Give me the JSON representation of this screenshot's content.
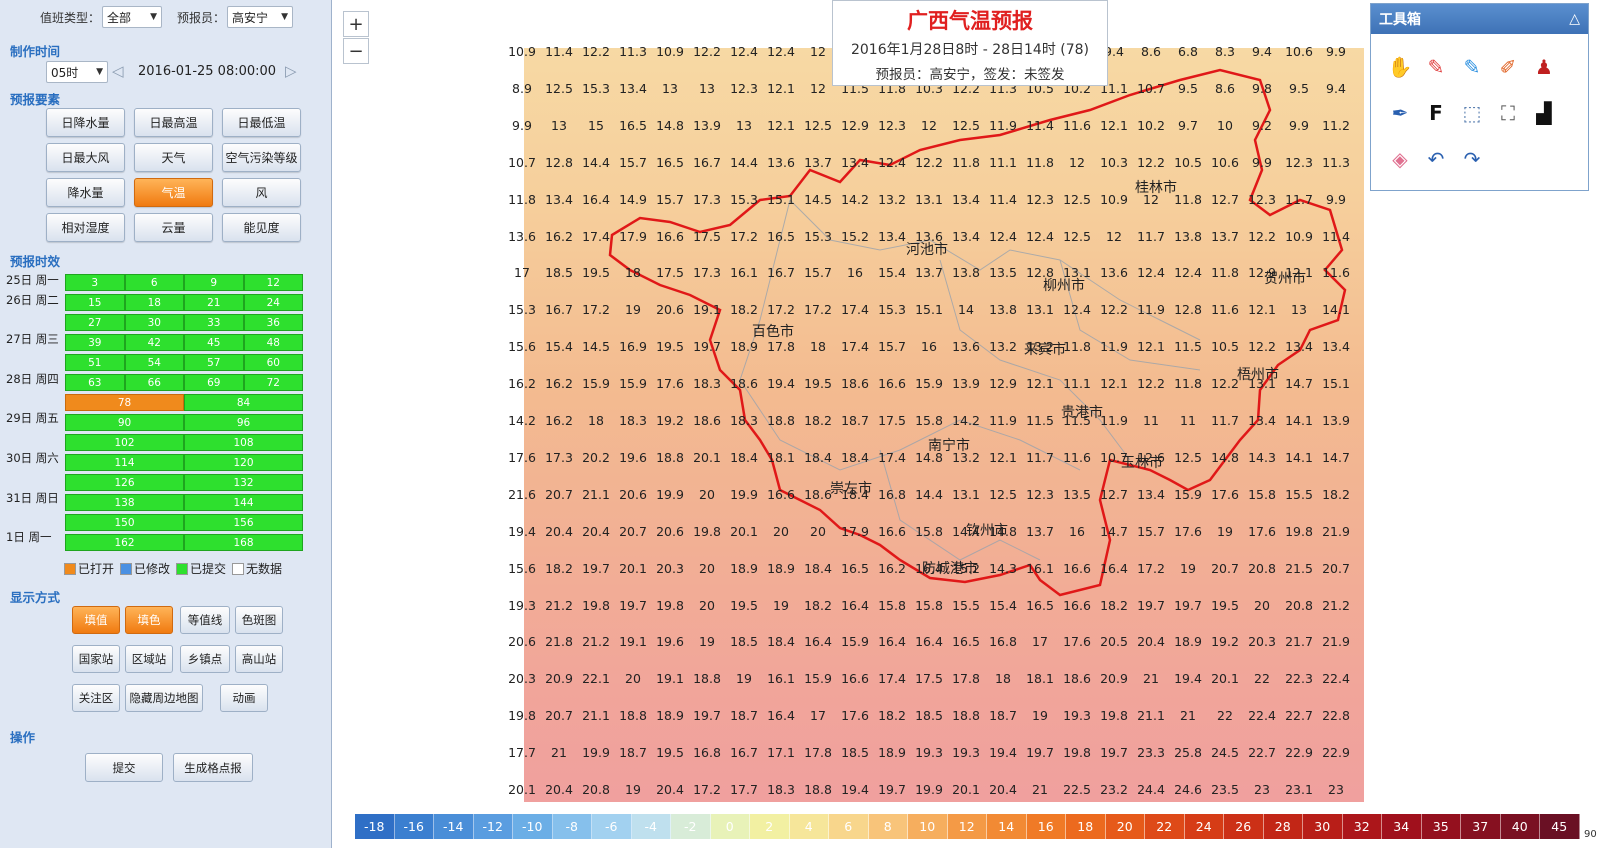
{
  "left": {
    "duty_label": "值班类型：",
    "duty_value": "全部",
    "forecaster_label": "预报员：",
    "forecaster_value": "高安宁",
    "make_time_title": "制作时间",
    "hour_value": "05时",
    "datetime_value": "2016-01-25 08:00:00",
    "elements_title": "预报要素",
    "elements": [
      "日降水量",
      "日最高温",
      "日最低温",
      "日最大风",
      "天气",
      "空气污染等级",
      "降水量",
      "气温",
      "风",
      "相对湿度",
      "云量",
      "能见度"
    ],
    "active_element": "气温",
    "validity_title": "预报时效",
    "days": [
      "25日 周一",
      "26日 周二",
      "27日 周三",
      "28日 周四",
      "29日 周五",
      "30日 周六",
      "31日 周日",
      "1日 周一"
    ],
    "hours4": [
      "3",
      "6",
      "9",
      "12",
      "15",
      "18",
      "21",
      "24",
      "27",
      "30",
      "33",
      "36",
      "39",
      "42",
      "45",
      "48",
      "51",
      "54",
      "57",
      "60",
      "63",
      "66",
      "69",
      "72"
    ],
    "hours2": [
      "78",
      "84",
      "90",
      "96",
      "102",
      "108",
      "114",
      "120",
      "126",
      "132",
      "138",
      "144",
      "150",
      "156",
      "162",
      "168"
    ],
    "open_hour": "78",
    "legend": [
      "已打开",
      "已修改",
      "已提交",
      "无数据"
    ],
    "legend_colors": [
      "#f08a1c",
      "#4a90e2",
      "#2ee02e",
      "#ffffff"
    ],
    "display_title": "显示方式",
    "display_buttons": [
      "填值",
      "填色",
      "等值线",
      "色斑图",
      "国家站",
      "区域站",
      "乡镇点",
      "高山站",
      "关注区",
      "隐藏周边地图",
      "动画"
    ],
    "ops_title": "操作",
    "ops_buttons": [
      "提交",
      "生成格点报"
    ]
  },
  "map": {
    "zoom_in": "+",
    "zoom_out": "−",
    "title": "广西气温预报",
    "subtitle": "2016年1月28日8时 - 28日14时 (78)",
    "info": "预报员：高安宁，签发：未签发",
    "cities": [
      "河池市",
      "柳州市",
      "桂林市",
      "贺州市",
      "百色市",
      "来宾市",
      "梧州市",
      "贵港市",
      "南宁市",
      "玉林市",
      "崇左市",
      "钦州市",
      "防城港市"
    ],
    "grid_rows": [
      [
        "10.9",
        "11.4",
        "12.2",
        "11.3",
        "10.9",
        "12.2",
        "12.4",
        "12.4",
        "12",
        "",
        "",
        "",
        "",
        "",
        "",
        "",
        "9.4",
        "8.6",
        "6.8",
        "8.3",
        "9.4",
        "10.6",
        "9.9"
      ],
      [
        "8.9",
        "12.5",
        "15.3",
        "13.4",
        "13",
        "13",
        "12.3",
        "12.1",
        "12",
        "11.5",
        "11.8",
        "10.3",
        "12.2",
        "11.3",
        "10.5",
        "10.2",
        "11.1",
        "10.7",
        "9.5",
        "8.6",
        "9.8",
        "9.5",
        "9.4"
      ],
      [
        "9.9",
        "13",
        "15",
        "16.5",
        "14.8",
        "13.9",
        "13",
        "12.1",
        "12.5",
        "12.9",
        "12.3",
        "12",
        "12.5",
        "11.9",
        "11.4",
        "11.6",
        "12.1",
        "10.2",
        "9.7",
        "10",
        "9.2",
        "9.9",
        "11.2"
      ],
      [
        "10.7",
        "12.8",
        "14.4",
        "15.7",
        "16.5",
        "16.7",
        "14.4",
        "13.6",
        "13.7",
        "13.4",
        "12.4",
        "12.2",
        "11.8",
        "11.1",
        "11.8",
        "12",
        "10.3",
        "12.2",
        "10.5",
        "10.6",
        "9.9",
        "12.3",
        "11.3"
      ],
      [
        "11.8",
        "13.4",
        "16.4",
        "14.9",
        "15.7",
        "17.3",
        "15.3",
        "15.1",
        "14.5",
        "14.2",
        "13.2",
        "13.1",
        "13.4",
        "11.4",
        "12.3",
        "12.5",
        "10.9",
        "12",
        "11.8",
        "12.7",
        "12.3",
        "11.7",
        "9.9"
      ],
      [
        "13.6",
        "16.2",
        "17.4",
        "17.9",
        "16.6",
        "17.5",
        "17.2",
        "16.5",
        "15.3",
        "15.2",
        "13.4",
        "13.6",
        "13.4",
        "12.4",
        "12.4",
        "12.5",
        "12",
        "11.7",
        "13.8",
        "13.7",
        "12.2",
        "10.9",
        "11.4"
      ],
      [
        "17",
        "18.5",
        "19.5",
        "18",
        "17.5",
        "17.3",
        "16.1",
        "16.7",
        "15.7",
        "16",
        "15.4",
        "13.7",
        "13.8",
        "13.5",
        "12.8",
        "13.1",
        "13.6",
        "12.4",
        "12.4",
        "11.8",
        "12.9",
        "12.1",
        "11.6"
      ],
      [
        "15.3",
        "16.7",
        "17.2",
        "19",
        "20.6",
        "19.1",
        "18.2",
        "17.2",
        "17.2",
        "17.4",
        "15.3",
        "15.1",
        "14",
        "13.8",
        "13.1",
        "12.4",
        "12.2",
        "11.9",
        "12.8",
        "11.6",
        "12.1",
        "13",
        "14.1"
      ],
      [
        "15.6",
        "15.4",
        "14.5",
        "16.9",
        "19.5",
        "19.7",
        "18.9",
        "17.8",
        "18",
        "17.4",
        "15.7",
        "16",
        "13.6",
        "13.2",
        "13.2",
        "11.8",
        "11.9",
        "12.1",
        "11.5",
        "10.5",
        "12.2",
        "13.4",
        "13.4"
      ],
      [
        "16.2",
        "16.2",
        "15.9",
        "15.9",
        "17.6",
        "18.3",
        "18.6",
        "19.4",
        "19.5",
        "18.6",
        "16.6",
        "15.9",
        "13.9",
        "12.9",
        "12.1",
        "11.1",
        "12.1",
        "12.2",
        "11.8",
        "12.2",
        "13.1",
        "14.7",
        "15.1"
      ],
      [
        "14.2",
        "16.2",
        "18",
        "18.3",
        "19.2",
        "18.6",
        "18.3",
        "18.8",
        "18.2",
        "18.7",
        "17.5",
        "15.8",
        "14.2",
        "11.9",
        "11.5",
        "11.5",
        "11.9",
        "11",
        "11",
        "11.7",
        "13.4",
        "14.1",
        "13.9"
      ],
      [
        "17.6",
        "17.3",
        "20.2",
        "19.6",
        "18.8",
        "20.1",
        "18.4",
        "18.1",
        "18.4",
        "18.4",
        "17.4",
        "14.8",
        "13.2",
        "12.1",
        "11.7",
        "11.6",
        "10.7",
        "12.6",
        "12.5",
        "14.8",
        "14.3",
        "14.1",
        "14.7"
      ],
      [
        "21.6",
        "20.7",
        "21.1",
        "20.6",
        "19.9",
        "20",
        "19.9",
        "16.6",
        "18.6",
        "18.4",
        "16.8",
        "14.4",
        "13.1",
        "12.5",
        "12.3",
        "13.5",
        "12.7",
        "13.4",
        "15.9",
        "17.6",
        "15.8",
        "15.5",
        "18.2"
      ],
      [
        "19.4",
        "20.4",
        "20.4",
        "20.7",
        "20.6",
        "19.8",
        "20.1",
        "20",
        "20",
        "17.9",
        "16.6",
        "15.8",
        "14.4",
        "14.8",
        "13.7",
        "16",
        "14.7",
        "15.7",
        "17.6",
        "19",
        "17.6",
        "19.8",
        "21.9"
      ],
      [
        "15.6",
        "18.2",
        "19.7",
        "20.1",
        "20.3",
        "20",
        "18.9",
        "18.9",
        "18.4",
        "16.5",
        "16.2",
        "16.4",
        "15.2",
        "14.3",
        "16.1",
        "16.6",
        "16.4",
        "17.2",
        "19",
        "20.7",
        "20.8",
        "21.5",
        "20.7"
      ],
      [
        "19.3",
        "21.2",
        "19.8",
        "19.7",
        "19.8",
        "20",
        "19.5",
        "19",
        "18.2",
        "16.4",
        "15.8",
        "15.8",
        "15.5",
        "15.4",
        "16.5",
        "16.6",
        "18.2",
        "19.7",
        "19.7",
        "19.5",
        "20",
        "20.8",
        "21.2"
      ],
      [
        "20.6",
        "21.8",
        "21.2",
        "19.1",
        "19.6",
        "19",
        "18.5",
        "18.4",
        "16.4",
        "15.9",
        "16.4",
        "16.4",
        "16.5",
        "16.8",
        "17",
        "17.6",
        "20.5",
        "20.4",
        "18.9",
        "19.2",
        "20.3",
        "21.7",
        "21.9"
      ],
      [
        "20.3",
        "20.9",
        "22.1",
        "20",
        "19.1",
        "18.8",
        "19",
        "16.1",
        "15.9",
        "16.6",
        "17.4",
        "17.5",
        "17.8",
        "18",
        "18.1",
        "18.6",
        "20.9",
        "21",
        "19.4",
        "20.1",
        "22",
        "22.3",
        "22.4"
      ],
      [
        "19.8",
        "20.7",
        "21.1",
        "18.8",
        "18.9",
        "19.7",
        "18.7",
        "16.4",
        "17",
        "17.6",
        "18.2",
        "18.5",
        "18.8",
        "18.7",
        "19",
        "19.3",
        "19.8",
        "21.1",
        "21",
        "22",
        "22.4",
        "22.7",
        "22.8"
      ],
      [
        "17.7",
        "21",
        "19.9",
        "18.7",
        "19.5",
        "16.8",
        "16.7",
        "17.1",
        "17.8",
        "18.5",
        "18.9",
        "19.3",
        "19.3",
        "19.4",
        "19.7",
        "19.8",
        "19.7",
        "23.3",
        "25.8",
        "24.5",
        "22.7",
        "22.9",
        "22.9"
      ],
      [
        "20.1",
        "20.4",
        "20.8",
        "19",
        "20.4",
        "17.2",
        "17.7",
        "18.3",
        "18.8",
        "19.4",
        "19.7",
        "19.9",
        "20.1",
        "20.4",
        "21",
        "22.5",
        "23.2",
        "24.4",
        "24.6",
        "23.5",
        "23",
        "23.1",
        "23"
      ]
    ],
    "colorbar": {
      "labels": [
        "-18",
        "-16",
        "-14",
        "-12",
        "-10",
        "-8",
        "-6",
        "-4",
        "-2",
        "0",
        "2",
        "4",
        "6",
        "8",
        "10",
        "12",
        "14",
        "16",
        "18",
        "20",
        "22",
        "24",
        "26",
        "28",
        "30",
        "32",
        "34",
        "35",
        "37",
        "40",
        "45"
      ],
      "colors": [
        "#2f6fc6",
        "#3b7fd0",
        "#4a8ed8",
        "#5a9de0",
        "#6baee6",
        "#86c0ec",
        "#a2d1f0",
        "#bfe0ee",
        "#d8ecd8",
        "#e8f2b8",
        "#f2f0a2",
        "#f6e69a",
        "#f8d68c",
        "#f8c47a",
        "#f6ae5e",
        "#f49a46",
        "#f28a34",
        "#f07a26",
        "#ec6a1e",
        "#e65a1a",
        "#de4a18",
        "#d63c16",
        "#cc3016",
        "#c22616",
        "#b81e18",
        "#ac161a",
        "#a0101c",
        "#94101e",
        "#861020",
        "#7a1022",
        "#6a1024"
      ],
      "tail": "90"
    },
    "toolbox": {
      "title": "工具箱",
      "collapse": "△",
      "tools": [
        "hand-icon",
        "pencil-red-icon",
        "pencil-blue-icon",
        "brush-icon",
        "stamp-icon",
        "pen-icon",
        "F",
        "select-icon",
        "lasso-icon",
        "chart-icon",
        "eraser-icon",
        "undo-icon",
        "redo-icon"
      ],
      "font_tool": "F"
    }
  }
}
